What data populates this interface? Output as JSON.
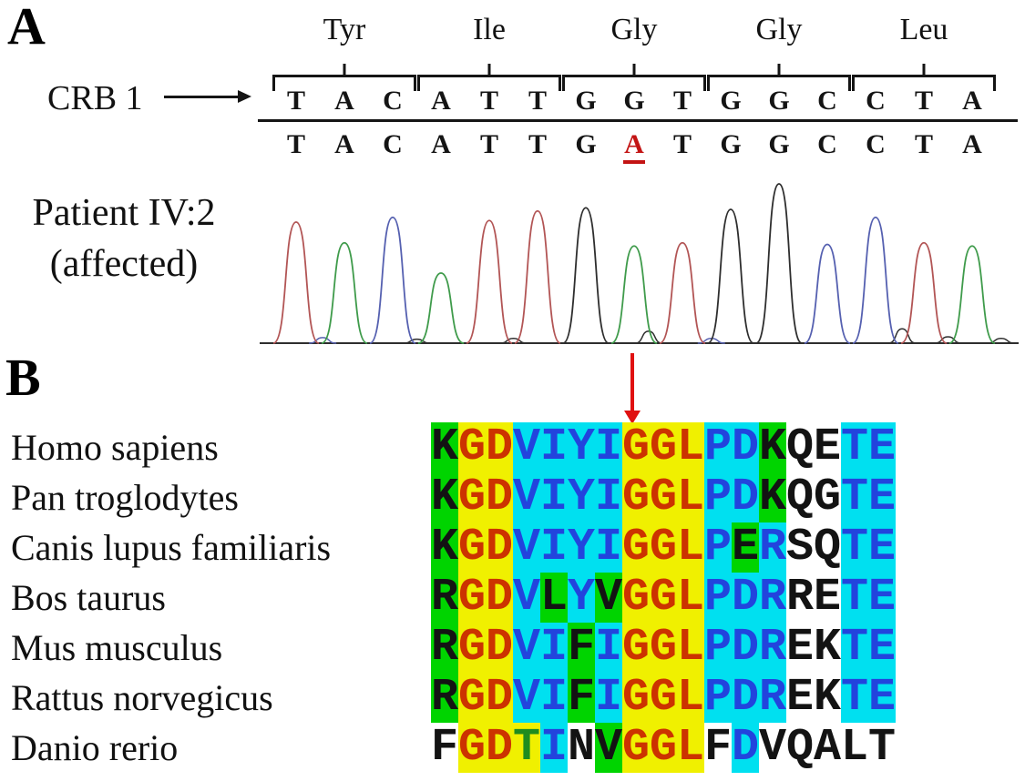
{
  "figure": {
    "panel_a_label": "A",
    "panel_b_label": "B",
    "gene_label": "CRB 1",
    "patient_label_line1": "Patient IV:2",
    "patient_label_line2": "(affected)",
    "codons": [
      "Tyr",
      "Ile",
      "Gly",
      "Gly",
      "Leu"
    ],
    "reference_sequence": "TACATTGGTGGCCTA",
    "patient_sequence": "TACATTGATGGCCTA",
    "mutant_index": 7,
    "mutant_color": "#c31414"
  },
  "chart_data": {
    "type": "line",
    "title": "Sanger chromatogram of patient IV:2 (affected) showing CRB1 G>A substitution",
    "x_labels": [
      "T",
      "A",
      "C",
      "A",
      "T",
      "T",
      "G",
      "A",
      "T",
      "G",
      "G",
      "C",
      "C",
      "T",
      "A"
    ],
    "peaks": [
      {
        "base": "T",
        "height": 0.76
      },
      {
        "base": "A",
        "height": 0.63
      },
      {
        "base": "C",
        "height": 0.79
      },
      {
        "base": "A",
        "height": 0.44
      },
      {
        "base": "T",
        "height": 0.77
      },
      {
        "base": "T",
        "height": 0.83
      },
      {
        "base": "G",
        "height": 0.85
      },
      {
        "base": "A",
        "height": 0.61,
        "note": "mutant G>A peak"
      },
      {
        "base": "T",
        "height": 0.63
      },
      {
        "base": "G",
        "height": 0.84
      },
      {
        "base": "G",
        "height": 1.0
      },
      {
        "base": "C",
        "height": 0.62
      },
      {
        "base": "C",
        "height": 0.79
      },
      {
        "base": "T",
        "height": 0.63
      },
      {
        "base": "A",
        "height": 0.61
      }
    ],
    "baseline_noise": [
      {
        "pos": 0.55,
        "h": 0.035,
        "base": "C"
      },
      {
        "pos": 2.5,
        "h": 0.025,
        "base": "G"
      },
      {
        "pos": 4.5,
        "h": 0.03,
        "base": "G"
      },
      {
        "pos": 7.3,
        "h": 0.075,
        "base": "G"
      },
      {
        "pos": 8.6,
        "h": 0.03,
        "base": "C"
      },
      {
        "pos": 12.55,
        "h": 0.09,
        "base": "G"
      },
      {
        "pos": 13.5,
        "h": 0.04,
        "base": "G"
      },
      {
        "pos": 14.6,
        "h": 0.03,
        "base": "G"
      }
    ],
    "base_colors": {
      "A": "#3f9b4b",
      "C": "#5560b0",
      "G": "#2e2e2e",
      "T": "#b25555"
    },
    "ylim": [
      0,
      1
    ],
    "axes_visible": false,
    "legend": "none"
  },
  "panel_b": {
    "mutation_arrow_color": "#e01111",
    "bg_palette": {
      "g": "#00d400",
      "y": "#f0f000",
      "c": "#00e0f0",
      "w": "#ffffff"
    },
    "fg_palette": {
      "k": "#131313",
      "r": "#cc3300",
      "b": "#2244dd",
      "n": "#1f8c1f"
    },
    "rows": [
      {
        "species": "Homo sapiens",
        "cells": [
          [
            "K",
            "g",
            "k"
          ],
          [
            "G",
            "y",
            "r"
          ],
          [
            "D",
            "y",
            "r"
          ],
          [
            "V",
            "c",
            "b"
          ],
          [
            "I",
            "c",
            "b"
          ],
          [
            "Y",
            "c",
            "b"
          ],
          [
            "I",
            "c",
            "b"
          ],
          [
            "G",
            "y",
            "r"
          ],
          [
            "G",
            "y",
            "r"
          ],
          [
            "L",
            "y",
            "r"
          ],
          [
            "P",
            "c",
            "b"
          ],
          [
            "D",
            "c",
            "b"
          ],
          [
            "K",
            "g",
            "k"
          ],
          [
            "Q",
            "w",
            "k"
          ],
          [
            "E",
            "w",
            "k"
          ],
          [
            "T",
            "c",
            "b"
          ],
          [
            "E",
            "c",
            "b"
          ]
        ]
      },
      {
        "species": "Pan troglodytes",
        "cells": [
          [
            "K",
            "g",
            "k"
          ],
          [
            "G",
            "y",
            "r"
          ],
          [
            "D",
            "y",
            "r"
          ],
          [
            "V",
            "c",
            "b"
          ],
          [
            "I",
            "c",
            "b"
          ],
          [
            "Y",
            "c",
            "b"
          ],
          [
            "I",
            "c",
            "b"
          ],
          [
            "G",
            "y",
            "r"
          ],
          [
            "G",
            "y",
            "r"
          ],
          [
            "L",
            "y",
            "r"
          ],
          [
            "P",
            "c",
            "b"
          ],
          [
            "D",
            "c",
            "b"
          ],
          [
            "K",
            "g",
            "k"
          ],
          [
            "Q",
            "w",
            "k"
          ],
          [
            "G",
            "w",
            "k"
          ],
          [
            "T",
            "c",
            "b"
          ],
          [
            "E",
            "c",
            "b"
          ]
        ]
      },
      {
        "species": "Canis lupus familiaris",
        "cells": [
          [
            "K",
            "g",
            "k"
          ],
          [
            "G",
            "y",
            "r"
          ],
          [
            "D",
            "y",
            "r"
          ],
          [
            "V",
            "c",
            "b"
          ],
          [
            "I",
            "c",
            "b"
          ],
          [
            "Y",
            "c",
            "b"
          ],
          [
            "I",
            "c",
            "b"
          ],
          [
            "G",
            "y",
            "r"
          ],
          [
            "G",
            "y",
            "r"
          ],
          [
            "L",
            "y",
            "r"
          ],
          [
            "P",
            "c",
            "b"
          ],
          [
            "E",
            "g",
            "k"
          ],
          [
            "R",
            "c",
            "b"
          ],
          [
            "S",
            "w",
            "k"
          ],
          [
            "Q",
            "w",
            "k"
          ],
          [
            "T",
            "c",
            "b"
          ],
          [
            "E",
            "c",
            "b"
          ]
        ]
      },
      {
        "species": "Bos taurus",
        "cells": [
          [
            "R",
            "g",
            "k"
          ],
          [
            "G",
            "y",
            "r"
          ],
          [
            "D",
            "y",
            "r"
          ],
          [
            "V",
            "c",
            "b"
          ],
          [
            "L",
            "g",
            "k"
          ],
          [
            "Y",
            "c",
            "b"
          ],
          [
            "V",
            "g",
            "k"
          ],
          [
            "G",
            "y",
            "r"
          ],
          [
            "G",
            "y",
            "r"
          ],
          [
            "L",
            "y",
            "r"
          ],
          [
            "P",
            "c",
            "b"
          ],
          [
            "D",
            "c",
            "b"
          ],
          [
            "R",
            "c",
            "b"
          ],
          [
            "R",
            "w",
            "k"
          ],
          [
            "E",
            "w",
            "k"
          ],
          [
            "T",
            "c",
            "b"
          ],
          [
            "E",
            "c",
            "b"
          ]
        ]
      },
      {
        "species": "Mus musculus",
        "cells": [
          [
            "R",
            "g",
            "k"
          ],
          [
            "G",
            "y",
            "r"
          ],
          [
            "D",
            "y",
            "r"
          ],
          [
            "V",
            "c",
            "b"
          ],
          [
            "I",
            "c",
            "b"
          ],
          [
            "F",
            "g",
            "k"
          ],
          [
            "I",
            "c",
            "b"
          ],
          [
            "G",
            "y",
            "r"
          ],
          [
            "G",
            "y",
            "r"
          ],
          [
            "L",
            "y",
            "r"
          ],
          [
            "P",
            "c",
            "b"
          ],
          [
            "D",
            "c",
            "b"
          ],
          [
            "R",
            "c",
            "b"
          ],
          [
            "E",
            "w",
            "k"
          ],
          [
            "K",
            "w",
            "k"
          ],
          [
            "T",
            "c",
            "b"
          ],
          [
            "E",
            "c",
            "b"
          ]
        ]
      },
      {
        "species": "Rattus norvegicus",
        "cells": [
          [
            "R",
            "g",
            "k"
          ],
          [
            "G",
            "y",
            "r"
          ],
          [
            "D",
            "y",
            "r"
          ],
          [
            "V",
            "c",
            "b"
          ],
          [
            "I",
            "c",
            "b"
          ],
          [
            "F",
            "g",
            "k"
          ],
          [
            "I",
            "c",
            "b"
          ],
          [
            "G",
            "y",
            "r"
          ],
          [
            "G",
            "y",
            "r"
          ],
          [
            "L",
            "y",
            "r"
          ],
          [
            "P",
            "c",
            "b"
          ],
          [
            "D",
            "c",
            "b"
          ],
          [
            "R",
            "c",
            "b"
          ],
          [
            "E",
            "w",
            "k"
          ],
          [
            "K",
            "w",
            "k"
          ],
          [
            "T",
            "c",
            "b"
          ],
          [
            "E",
            "c",
            "b"
          ]
        ]
      },
      {
        "species": "Danio rerio",
        "cells": [
          [
            "F",
            "w",
            "k"
          ],
          [
            "G",
            "y",
            "r"
          ],
          [
            "D",
            "y",
            "r"
          ],
          [
            "T",
            "y",
            "n"
          ],
          [
            "I",
            "c",
            "b"
          ],
          [
            "N",
            "w",
            "k"
          ],
          [
            "V",
            "g",
            "k"
          ],
          [
            "G",
            "y",
            "r"
          ],
          [
            "G",
            "y",
            "r"
          ],
          [
            "L",
            "y",
            "r"
          ],
          [
            "F",
            "w",
            "k"
          ],
          [
            "D",
            "c",
            "b"
          ],
          [
            "V",
            "w",
            "k"
          ],
          [
            "Q",
            "w",
            "k"
          ],
          [
            "A",
            "w",
            "k"
          ],
          [
            "L",
            "w",
            "k"
          ],
          [
            "T",
            "w",
            "k"
          ]
        ]
      }
    ]
  }
}
